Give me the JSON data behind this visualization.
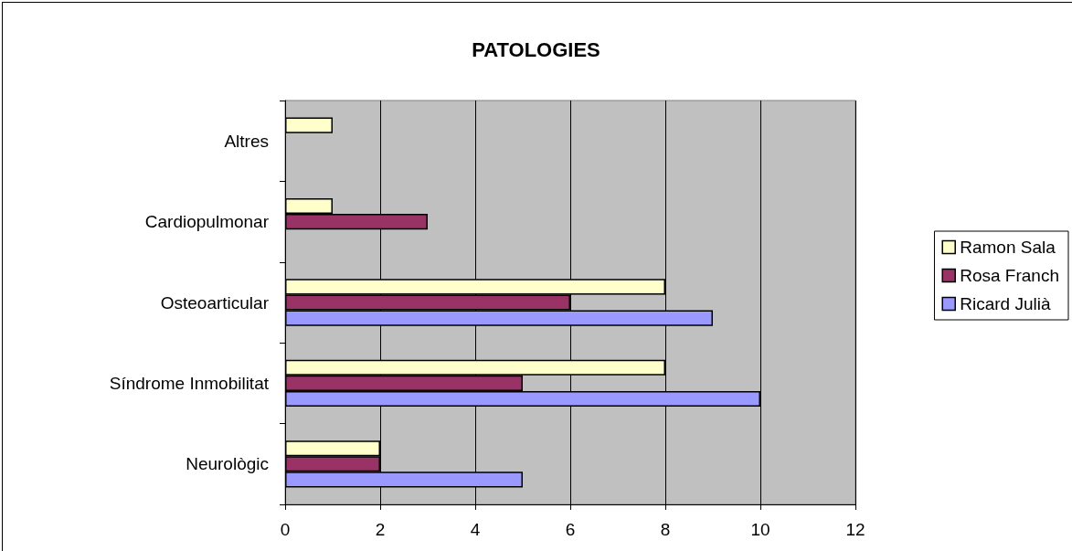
{
  "chart_data": {
    "type": "bar",
    "orientation": "horizontal",
    "title": "PATOLOGIES",
    "categories": [
      "Altres",
      "Cardiopulmonar",
      "Osteoarticular",
      "Síndrome Inmobilitat",
      "Neurològic"
    ],
    "series": [
      {
        "name": "Ramon Sala",
        "color": "#ffffcc",
        "values": [
          1,
          1,
          8,
          8,
          2
        ]
      },
      {
        "name": "Rosa Franch",
        "color": "#993366",
        "values": [
          null,
          3,
          6,
          5,
          2
        ]
      },
      {
        "name": "Ricard Julià",
        "color": "#9999ff",
        "values": [
          null,
          null,
          9,
          10,
          5
        ]
      }
    ],
    "xlim": [
      0,
      12
    ],
    "xticks": [
      0,
      2,
      4,
      6,
      8,
      10,
      12
    ],
    "grid": "x",
    "legend": "right"
  }
}
